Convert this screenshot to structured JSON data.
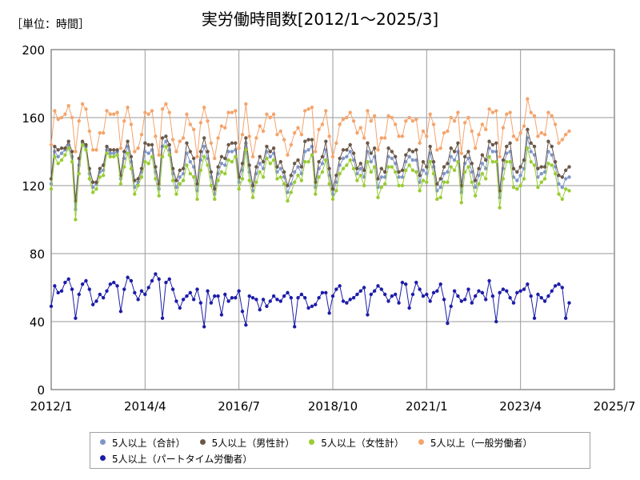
{
  "header": {
    "unit_label": "［単位：時間］",
    "title": "実労働時間数[2012/1～2025/3]"
  },
  "chart_data": {
    "type": "line",
    "x_start": "2012/1",
    "x_ticks": [
      "2012/1",
      "2014/4",
      "2016/7",
      "2018/10",
      "2021/1",
      "2023/4",
      "2025/7"
    ],
    "xlim": [
      "2012/1",
      "2025/7"
    ],
    "ylim": [
      0,
      200
    ],
    "y_ticks": [
      0,
      40,
      80,
      120,
      160,
      200
    ],
    "grid": true,
    "legend_position": "bottom",
    "series": [
      {
        "name": "5人以上（合計）",
        "color": "#7f96c8",
        "values": [
          121,
          140,
          137,
          139,
          141,
          144,
          137,
          106,
          132,
          145,
          143,
          127,
          119,
          121,
          128,
          129,
          141,
          139,
          139,
          140,
          124,
          136,
          143,
          134,
          119,
          122,
          128,
          140,
          139,
          141,
          128,
          118,
          143,
          146,
          141,
          127,
          119,
          125,
          127,
          139,
          134,
          131,
          117,
          135,
          143,
          136,
          125,
          115,
          127,
          133,
          132,
          140,
          140,
          141,
          122,
          129,
          145,
          128,
          117,
          127,
          133,
          130,
          140,
          137,
          139,
          128,
          130,
          125,
          116,
          121,
          128,
          131,
          127,
          140,
          141,
          143,
          119,
          130,
          133,
          141,
          126,
          115,
          122,
          132,
          136,
          137,
          140,
          135,
          127,
          130,
          125,
          140,
          134,
          137,
          119,
          125,
          125,
          137,
          136,
          133,
          125,
          125,
          134,
          137,
          135,
          135,
          122,
          129,
          127,
          139,
          131,
          117,
          119,
          127,
          128,
          137,
          135,
          140,
          116,
          133,
          136,
          128,
          119,
          126,
          133,
          130,
          142,
          140,
          140,
          113,
          130,
          139,
          140,
          125,
          123,
          126,
          130,
          148,
          140,
          138,
          125,
          127,
          128,
          140,
          138,
          131,
          121,
          119,
          124,
          125
        ]
      },
      {
        "name": "5人以上（男性計）",
        "color": "#6b5848",
        "values": [
          124,
          143,
          141,
          142,
          142,
          146,
          140,
          111,
          136,
          146,
          144,
          130,
          122,
          122,
          130,
          132,
          143,
          141,
          141,
          141,
          126,
          140,
          146,
          137,
          123,
          124,
          130,
          145,
          144,
          144,
          131,
          121,
          148,
          149,
          144,
          130,
          123,
          129,
          130,
          145,
          140,
          136,
          121,
          140,
          148,
          140,
          128,
          118,
          131,
          137,
          136,
          144,
          145,
          145,
          125,
          133,
          148,
          132,
          120,
          131,
          137,
          134,
          143,
          140,
          142,
          131,
          134,
          128,
          120,
          126,
          133,
          135,
          131,
          146,
          147,
          147,
          122,
          134,
          137,
          146,
          130,
          118,
          126,
          136,
          141,
          141,
          144,
          139,
          130,
          133,
          129,
          145,
          139,
          142,
          124,
          130,
          128,
          142,
          140,
          137,
          128,
          129,
          138,
          141,
          140,
          141,
          126,
          134,
          131,
          143,
          134,
          121,
          124,
          131,
          133,
          142,
          140,
          145,
          120,
          137,
          140,
          133,
          123,
          130,
          138,
          135,
          146,
          144,
          145,
          117,
          135,
          143,
          145,
          130,
          128,
          131,
          135,
          153,
          145,
          143,
          130,
          131,
          131,
          146,
          143,
          134,
          126,
          125,
          129,
          131
        ]
      },
      {
        "name": "5人以上（女性計）",
        "color": "#99cc33",
        "values": [
          118,
          137,
          133,
          135,
          138,
          142,
          134,
          100,
          127,
          144,
          141,
          124,
          116,
          118,
          125,
          126,
          139,
          137,
          137,
          138,
          121,
          131,
          139,
          130,
          115,
          120,
          125,
          134,
          133,
          137,
          124,
          114,
          137,
          143,
          138,
          123,
          115,
          121,
          123,
          132,
          127,
          125,
          112,
          129,
          137,
          132,
          120,
          112,
          123,
          128,
          127,
          135,
          134,
          137,
          118,
          124,
          141,
          123,
          113,
          122,
          128,
          125,
          136,
          133,
          135,
          124,
          125,
          121,
          111,
          116,
          122,
          126,
          123,
          134,
          134,
          138,
          115,
          125,
          128,
          135,
          121,
          112,
          117,
          127,
          130,
          132,
          135,
          130,
          123,
          126,
          120,
          134,
          128,
          131,
          113,
          119,
          121,
          131,
          131,
          128,
          120,
          120,
          129,
          132,
          129,
          128,
          117,
          123,
          122,
          134,
          127,
          112,
          113,
          122,
          122,
          131,
          129,
          134,
          110,
          128,
          131,
          122,
          114,
          121,
          127,
          124,
          137,
          134,
          134,
          107,
          124,
          134,
          134,
          119,
          118,
          120,
          124,
          142,
          134,
          132,
          119,
          122,
          124,
          133,
          132,
          127,
          115,
          112,
          118,
          117
        ]
      },
      {
        "name": "5人以上（一般労働者）",
        "color": "#f4a46c",
        "values": [
          144,
          164,
          159,
          160,
          162,
          167,
          160,
          140,
          158,
          168,
          165,
          152,
          141,
          141,
          151,
          151,
          164,
          162,
          162,
          163,
          142,
          158,
          166,
          156,
          140,
          142,
          150,
          163,
          162,
          164,
          149,
          138,
          165,
          168,
          163,
          147,
          140,
          146,
          148,
          162,
          156,
          153,
          137,
          157,
          166,
          158,
          145,
          136,
          148,
          155,
          154,
          163,
          163,
          164,
          142,
          150,
          168,
          149,
          137,
          148,
          155,
          152,
          162,
          160,
          162,
          150,
          152,
          147,
          138,
          144,
          151,
          154,
          150,
          164,
          165,
          166,
          140,
          153,
          156,
          164,
          149,
          137,
          145,
          156,
          159,
          160,
          163,
          158,
          151,
          154,
          148,
          164,
          158,
          161,
          141,
          148,
          148,
          161,
          160,
          156,
          149,
          149,
          158,
          160,
          158,
          159,
          145,
          152,
          149,
          162,
          156,
          141,
          142,
          151,
          152,
          160,
          158,
          163,
          139,
          157,
          160,
          152,
          142,
          150,
          156,
          153,
          165,
          163,
          164,
          137,
          154,
          162,
          163,
          149,
          147,
          151,
          155,
          171,
          163,
          161,
          149,
          151,
          150,
          163,
          161,
          156,
          145,
          147,
          150,
          152
        ]
      },
      {
        "name": "5人以上（パートタイム労働者）",
        "color": "#1c1ca8",
        "values": [
          49,
          61,
          57,
          58,
          63,
          65,
          59,
          42,
          56,
          62,
          64,
          59,
          50,
          52,
          56,
          54,
          58,
          62,
          63,
          61,
          46,
          59,
          66,
          64,
          57,
          53,
          58,
          56,
          60,
          64,
          68,
          65,
          42,
          63,
          65,
          59,
          52,
          48,
          53,
          55,
          57,
          53,
          59,
          51,
          37,
          58,
          51,
          55,
          55,
          44,
          56,
          52,
          54,
          54,
          58,
          46,
          38,
          55,
          54,
          53,
          47,
          53,
          49,
          52,
          55,
          53,
          52,
          55,
          57,
          54,
          37,
          54,
          56,
          54,
          48,
          49,
          50,
          54,
          57,
          57,
          45,
          55,
          59,
          61,
          52,
          51,
          53,
          54,
          56,
          58,
          60,
          44,
          56,
          58,
          61,
          59,
          56,
          52,
          55,
          56,
          51,
          63,
          62,
          48,
          56,
          63,
          59,
          55,
          56,
          52,
          57,
          58,
          62,
          53,
          39,
          49,
          58,
          55,
          52,
          53,
          59,
          51,
          55,
          58,
          57,
          53,
          64,
          55,
          40,
          57,
          59,
          58,
          54,
          51,
          57,
          58,
          59,
          62,
          55,
          42,
          56,
          54,
          52,
          55,
          58,
          61,
          62,
          60,
          42,
          51
        ]
      }
    ]
  }
}
